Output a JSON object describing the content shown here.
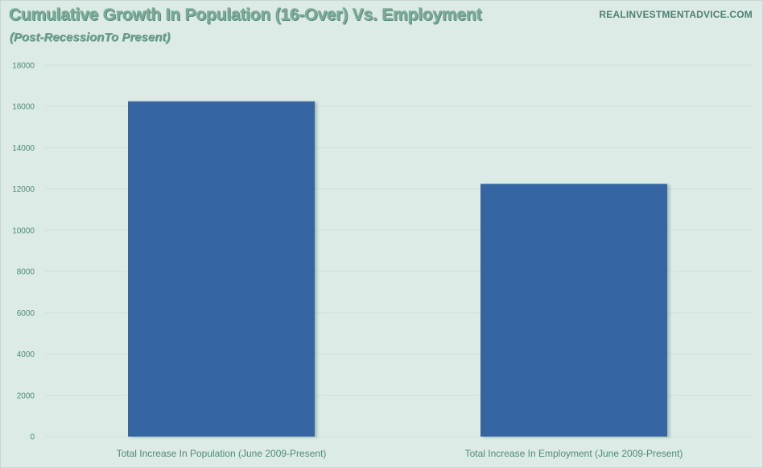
{
  "source": "REALINVESTMENTADVICE.COM",
  "chart_data": {
    "type": "bar",
    "title": "Cumulative Growth In Population (16-Over) Vs. Employment",
    "subtitle": "(Post-RecessionTo Present)",
    "categories": [
      "Total Increase In Population (June 2009-Present)",
      "Total Increase In Employment (June 2009-Present)"
    ],
    "values": [
      16250,
      12250
    ],
    "yticks": [
      0,
      2000,
      4000,
      6000,
      8000,
      10000,
      12000,
      14000,
      16000,
      18000
    ],
    "ylim": [
      0,
      18000
    ],
    "grid": true,
    "legend": "none",
    "colors": {
      "bar": "#3465a2",
      "bar_shadow": "#9fb2b0",
      "background": "#dcebe5",
      "grid": "#cde0d9",
      "title": "#7aab98",
      "axis_text": "#4f8a7a"
    }
  }
}
